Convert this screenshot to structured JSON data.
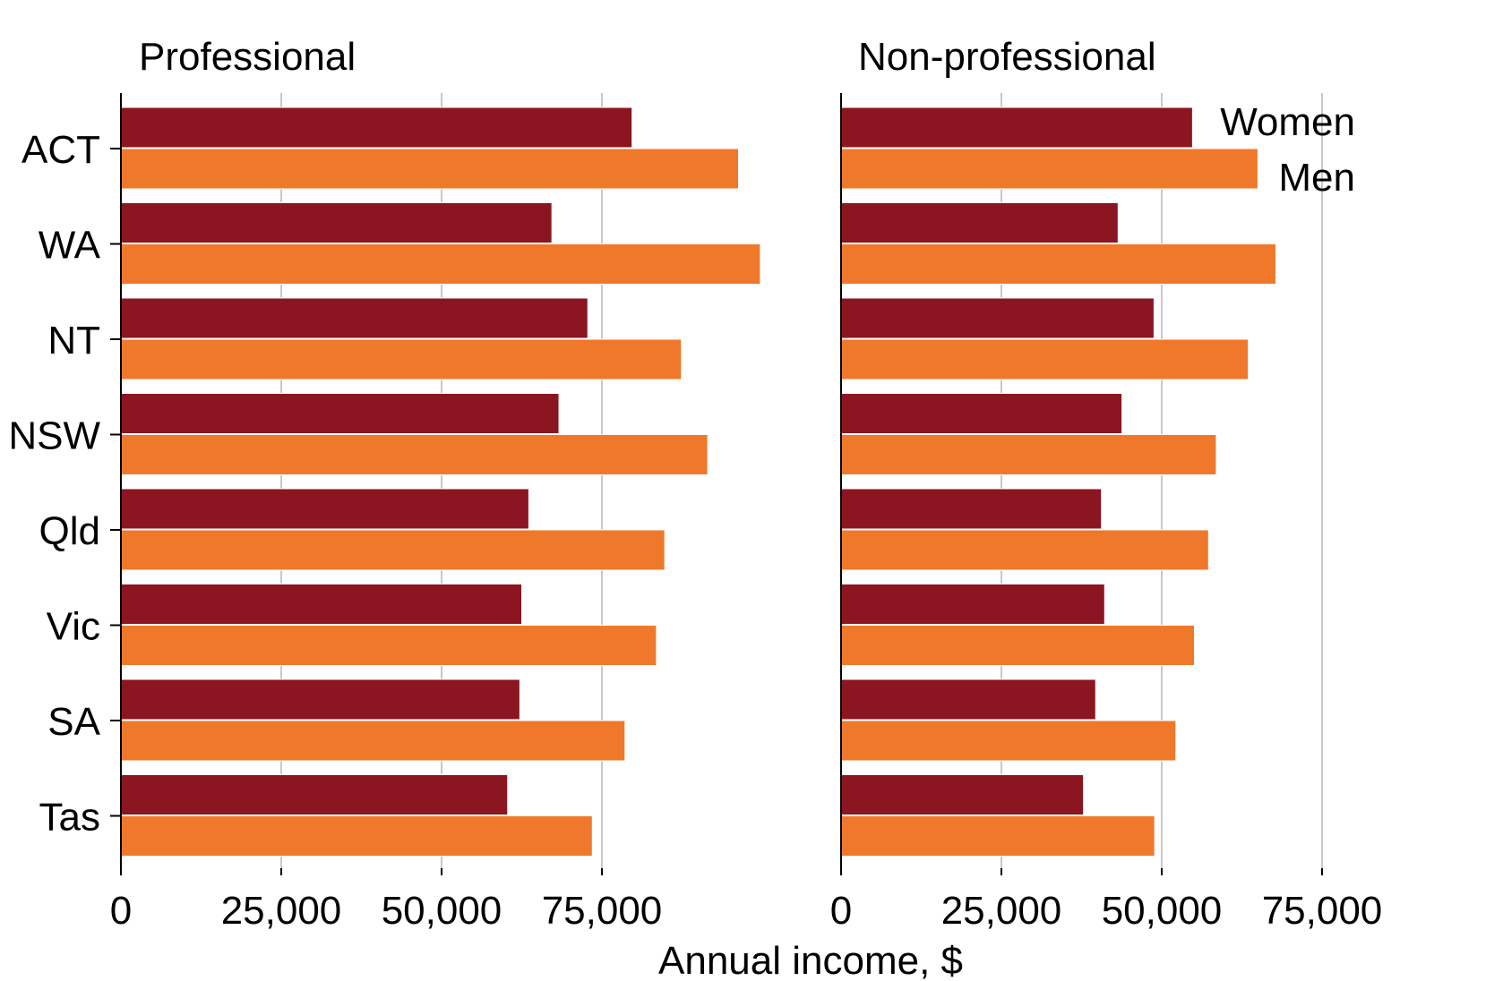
{
  "chart_data": {
    "type": "bar",
    "orientation": "horizontal",
    "xlabel": "Annual income, $",
    "categories": [
      "ACT",
      "WA",
      "NT",
      "NSW",
      "Qld",
      "Vic",
      "SA",
      "Tas"
    ],
    "xlim": [
      0,
      100000
    ],
    "xticks": [
      0,
      25000,
      50000,
      75000
    ],
    "xtick_labels": [
      "0",
      "25,000",
      "50,000",
      "75,000"
    ],
    "grid": true,
    "legend": {
      "placement": "top-right of right panel",
      "style": "direct labels"
    },
    "colors": {
      "Women": "#8B1520",
      "Men": "#F0782A"
    },
    "panels": [
      {
        "title": "Professional",
        "series": [
          {
            "name": "Women",
            "values": [
              79700,
              67200,
              72800,
              68300,
              63600,
              62500,
              62200,
              60300
            ]
          },
          {
            "name": "Men",
            "values": [
              96300,
              99700,
              87400,
              91500,
              84800,
              83500,
              78600,
              73500
            ]
          }
        ]
      },
      {
        "title": "Non-professional",
        "series": [
          {
            "name": "Women",
            "values": [
              54800,
              43200,
              48800,
              43800,
              40600,
              41100,
              39700,
              37800
            ]
          },
          {
            "name": "Men",
            "values": [
              65000,
              67800,
              63500,
              58500,
              57300,
              55100,
              52200,
              48900
            ]
          }
        ]
      }
    ]
  }
}
